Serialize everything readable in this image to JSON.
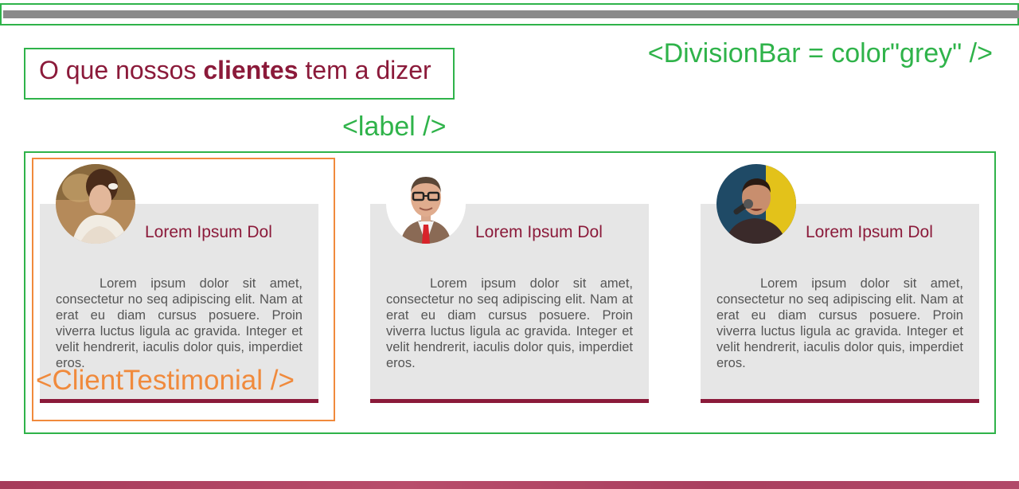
{
  "annotations": {
    "division_bar": "<DivisionBar = color\"grey\" />",
    "label": "<label />",
    "client_testimonial": "<ClientTestimonial />"
  },
  "section": {
    "title_prefix": "O que nossos ",
    "title_bold": "clientes",
    "title_suffix": " tem a dizer"
  },
  "testimonials": [
    {
      "name": "Lorem Ipsum Dol",
      "avatar": "woman-avatar",
      "text": "Lorem ipsum dolor sit amet, consectetur no seq adipiscing elit. Nam at erat eu diam cursus posuere. Proin viverra luctus ligula ac gravida. Integer et velit hendrerit, iaculis dolor quis, imperdiet eros."
    },
    {
      "name": "Lorem Ipsum Dol",
      "avatar": "man-glasses-avatar",
      "text": "Lorem ipsum dolor sit amet, consectetur no seq adipiscing elit. Nam at erat eu diam cursus posuere. Proin viverra luctus ligula ac gravida. Integer et velit hendrerit, iaculis dolor quis, imperdiet eros."
    },
    {
      "name": "Lorem Ipsum Dol",
      "avatar": "singer-avatar",
      "text": "Lorem ipsum dolor sit amet, consectetur no seq adipiscing elit. Nam at erat eu diam cursus posuere. Proin viverra luctus ligula ac gravida. Integer et velit hendrerit, iaculis dolor quis, imperdiet eros."
    }
  ],
  "colors": {
    "brand": "#8b1a3a",
    "annotation_green": "#2fb34a",
    "annotation_orange": "#f08a3c",
    "division_bar": "#8a8a8a",
    "card_bg": "#e6e6e6"
  }
}
